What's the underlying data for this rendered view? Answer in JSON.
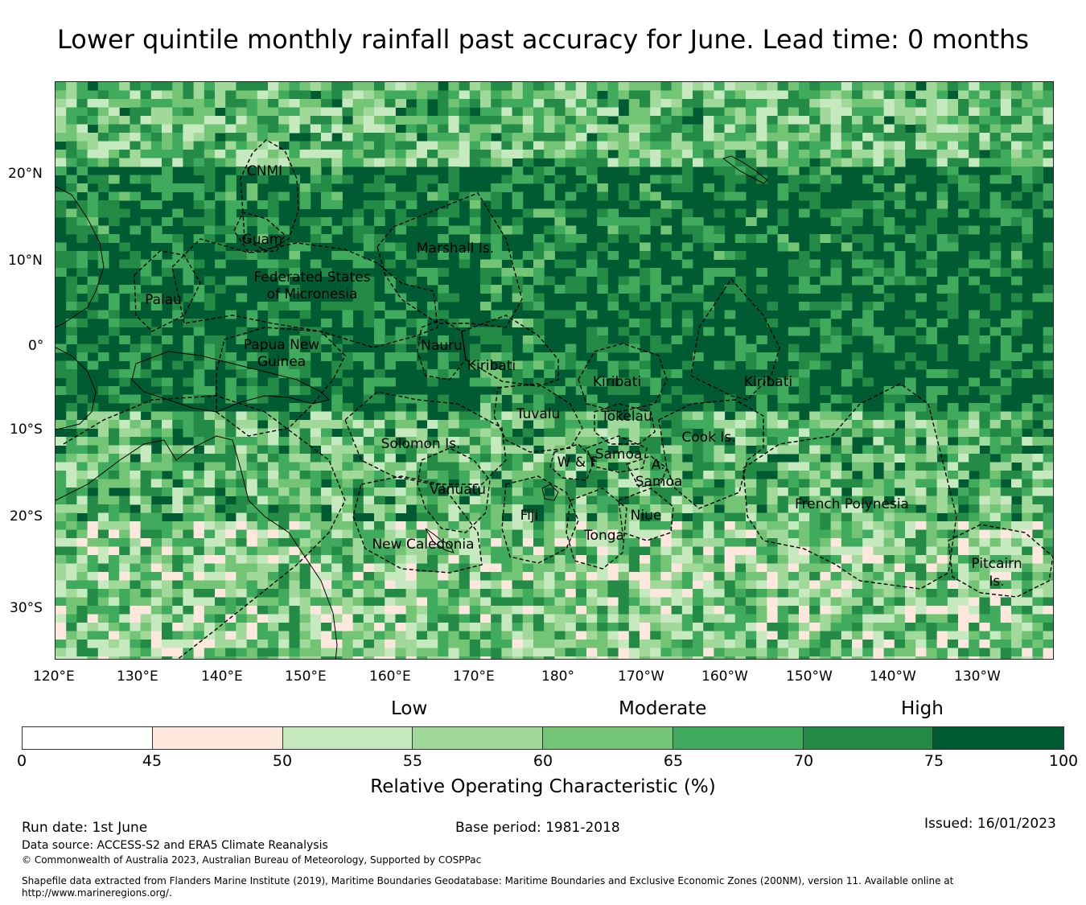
{
  "title": "Lower quintile monthly rainfall past accuracy for June. Lead time: 0 months",
  "map": {
    "latitude_labels": [
      "20°N",
      "10°N",
      "0°",
      "10°S",
      "20°S",
      "30°S"
    ],
    "longitude_labels": [
      "120°E",
      "130°E",
      "140°E",
      "150°E",
      "160°E",
      "170°E",
      "180°",
      "170°W",
      "160°W",
      "150°W",
      "140°W",
      "130°W"
    ],
    "regions": [
      {
        "id": "cnmi",
        "label": "CNMI"
      },
      {
        "id": "guam",
        "label": "Guam"
      },
      {
        "id": "marshall",
        "label": "Marshall Is."
      },
      {
        "id": "fsm1",
        "label": "Federated States"
      },
      {
        "id": "fsm2",
        "label": "of Micronesia"
      },
      {
        "id": "palau",
        "label": "Palau"
      },
      {
        "id": "png1",
        "label": "Papua New"
      },
      {
        "id": "png2",
        "label": "Guinea"
      },
      {
        "id": "nauru",
        "label": "Nauru"
      },
      {
        "id": "kiribati_w",
        "label": "Kiribati"
      },
      {
        "id": "kiribati_c",
        "label": "Kiribati"
      },
      {
        "id": "kiribati_e",
        "label": "Kiribati"
      },
      {
        "id": "tuvalu",
        "label": "Tuvalu"
      },
      {
        "id": "tokelau",
        "label": "Tokelau"
      },
      {
        "id": "solomon",
        "label": "Solomon Is."
      },
      {
        "id": "cook",
        "label": "Cook Is."
      },
      {
        "id": "samoa",
        "label": "Samoa"
      },
      {
        "id": "wf",
        "label": "W & F"
      },
      {
        "id": "asamoa1",
        "label": "A."
      },
      {
        "id": "asamoa2",
        "label": "Samoa"
      },
      {
        "id": "vanuatu",
        "label": "Vanuatu"
      },
      {
        "id": "fiji",
        "label": "Fiji"
      },
      {
        "id": "niue",
        "label": "Niue"
      },
      {
        "id": "tonga",
        "label": "Tonga"
      },
      {
        "id": "frpoly",
        "label": "French Polynesia"
      },
      {
        "id": "newcal",
        "label": "New Caledonia"
      },
      {
        "id": "pitcairn1",
        "label": "Pitcairn"
      },
      {
        "id": "pitcairn2",
        "label": "Is."
      }
    ]
  },
  "legend": {
    "categories": [
      "Low",
      "Moderate",
      "High"
    ],
    "bins": [
      {
        "from": 0,
        "to": 45,
        "color": "#ffffff"
      },
      {
        "from": 45,
        "to": 50,
        "color": "#fee8de"
      },
      {
        "from": 50,
        "to": 55,
        "color": "#c7e9c0"
      },
      {
        "from": 55,
        "to": 60,
        "color": "#a1d99b"
      },
      {
        "from": 60,
        "to": 65,
        "color": "#74c476"
      },
      {
        "from": 65,
        "to": 70,
        "color": "#41ab5d"
      },
      {
        "from": 70,
        "to": 75,
        "color": "#238b45"
      },
      {
        "from": 75,
        "to": 100,
        "color": "#005a32"
      }
    ],
    "ticks": [
      "0",
      "45",
      "50",
      "55",
      "60",
      "65",
      "70",
      "75",
      "100"
    ],
    "label": "Relative Operating Characteristic (%)"
  },
  "footer": {
    "run_date": "Run date: 1st June",
    "base_period": "Base period: 1981-2018",
    "issued": "Issued: 16/01/2023",
    "data_source": "Data source: ACCESS-S2 and ERA5 Climate Reanalysis",
    "copyright": "© Commonwealth of Australia 2023, Australian Bureau of Meteorology, Supported by COSPPac",
    "shapefile_line1": "Shapefile data extracted from Flanders Marine Institute (2019), Maritime Boundaries Geodatabase: Maritime Boundaries and Exclusive Economic Zones (200NM), version 11. Available online at",
    "shapefile_line2": "http://www.marineregions.org/."
  }
}
